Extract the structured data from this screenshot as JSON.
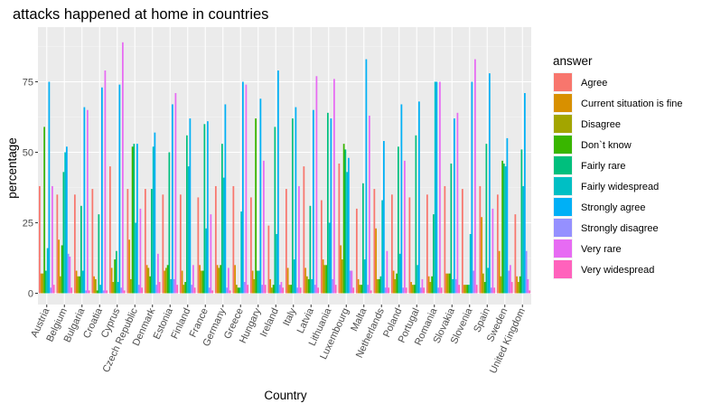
{
  "chart_data": {
    "type": "bar",
    "title": "attacks happened at home in countries",
    "xlabel": "Country",
    "ylabel": "percentage",
    "ylim": [
      0,
      90
    ],
    "yticks": [
      0,
      25,
      50,
      75
    ],
    "grid": true,
    "legend_position": "right",
    "legend_title": "answer",
    "categories": [
      "Austria",
      "Belgium",
      "Bulgaria",
      "Croatia",
      "Cyprus",
      "Czech Republic",
      "Denmark",
      "Estonia",
      "Finland",
      "France",
      "Germany",
      "Greece",
      "Hungary",
      "Ireland",
      "Italy",
      "Latvia",
      "Lithuania",
      "Luxembourg",
      "Malta",
      "Netherlands",
      "Poland",
      "Portugal",
      "Romania",
      "Slovakia",
      "Slovenia",
      "Spain",
      "Sweden",
      "United Kingdom"
    ],
    "series": [
      {
        "name": "Agree",
        "color": "#F8766D",
        "values": [
          38,
          35,
          35,
          37,
          45,
          37,
          37,
          35,
          35,
          34,
          38,
          38,
          34,
          24,
          37,
          45,
          33,
          46,
          30,
          37,
          35,
          34,
          35,
          38,
          37,
          38,
          35,
          28
        ]
      },
      {
        "name": "Current situation is fine",
        "color": "#D89000",
        "values": [
          7,
          19,
          8,
          6,
          9,
          19,
          10,
          8,
          8,
          10,
          10,
          10,
          8,
          5,
          9,
          9,
          12,
          17,
          5,
          23,
          8,
          4,
          6,
          7,
          3,
          27,
          15,
          6
        ]
      },
      {
        "name": "Disagree",
        "color": "#A3A500",
        "values": [
          7,
          6,
          6,
          5,
          4,
          5,
          9,
          9,
          3,
          8,
          9,
          3,
          5,
          2,
          3,
          6,
          10,
          12,
          3,
          5,
          5,
          3,
          4,
          7,
          3,
          7,
          6,
          4
        ]
      },
      {
        "name": "Don`t know",
        "color": "#39B600",
        "values": [
          59,
          17,
          6,
          1,
          12,
          52,
          6,
          10,
          4,
          8,
          10,
          2,
          62,
          3,
          3,
          5,
          10,
          53,
          3,
          5,
          7,
          3,
          6,
          7,
          3,
          4,
          47,
          6
        ]
      },
      {
        "name": "Fairly rare",
        "color": "#00BF7D",
        "values": [
          8,
          43,
          31,
          28,
          15,
          53,
          37,
          50,
          56,
          60,
          53,
          2,
          8,
          59,
          62,
          31,
          64,
          51,
          39,
          6,
          52,
          56,
          28,
          46,
          3,
          53,
          46,
          51
        ]
      },
      {
        "name": "Fairly widespread",
        "color": "#00BFC4",
        "values": [
          16,
          50,
          8,
          3,
          4,
          25,
          52,
          5,
          45,
          23,
          41,
          29,
          8,
          21,
          12,
          5,
          25,
          43,
          12,
          33,
          14,
          10,
          75,
          5,
          21,
          9,
          45,
          38
        ]
      },
      {
        "name": "Strongly agree",
        "color": "#00B0F6",
        "values": [
          75,
          52,
          66,
          73,
          74,
          53,
          57,
          67,
          62,
          61,
          67,
          75,
          69,
          79,
          66,
          65,
          62,
          48,
          83,
          54,
          67,
          68,
          75,
          62,
          75,
          78,
          55,
          71
        ]
      },
      {
        "name": "Strongly disagree",
        "color": "#9590FF",
        "values": [
          2,
          14,
          1,
          1,
          2,
          3,
          3,
          5,
          3,
          2,
          2,
          4,
          3,
          3,
          2,
          3,
          5,
          8,
          3,
          2,
          2,
          2,
          2,
          5,
          8,
          2,
          8,
          15
        ]
      },
      {
        "name": "Very rare",
        "color": "#E76BF3",
        "values": [
          38,
          13,
          65,
          79,
          89,
          30,
          14,
          71,
          10,
          28,
          9,
          74,
          47,
          4,
          38,
          77,
          76,
          8,
          63,
          15,
          47,
          5,
          75,
          64,
          83,
          30,
          10,
          5
        ]
      },
      {
        "name": "Very widespread",
        "color": "#FF62BC",
        "values": [
          3,
          2,
          1,
          1,
          1,
          2,
          4,
          3,
          2,
          1,
          1,
          3,
          3,
          2,
          2,
          2,
          3,
          2,
          1,
          2,
          2,
          2,
          2,
          3,
          3,
          2,
          4,
          1
        ]
      }
    ]
  }
}
